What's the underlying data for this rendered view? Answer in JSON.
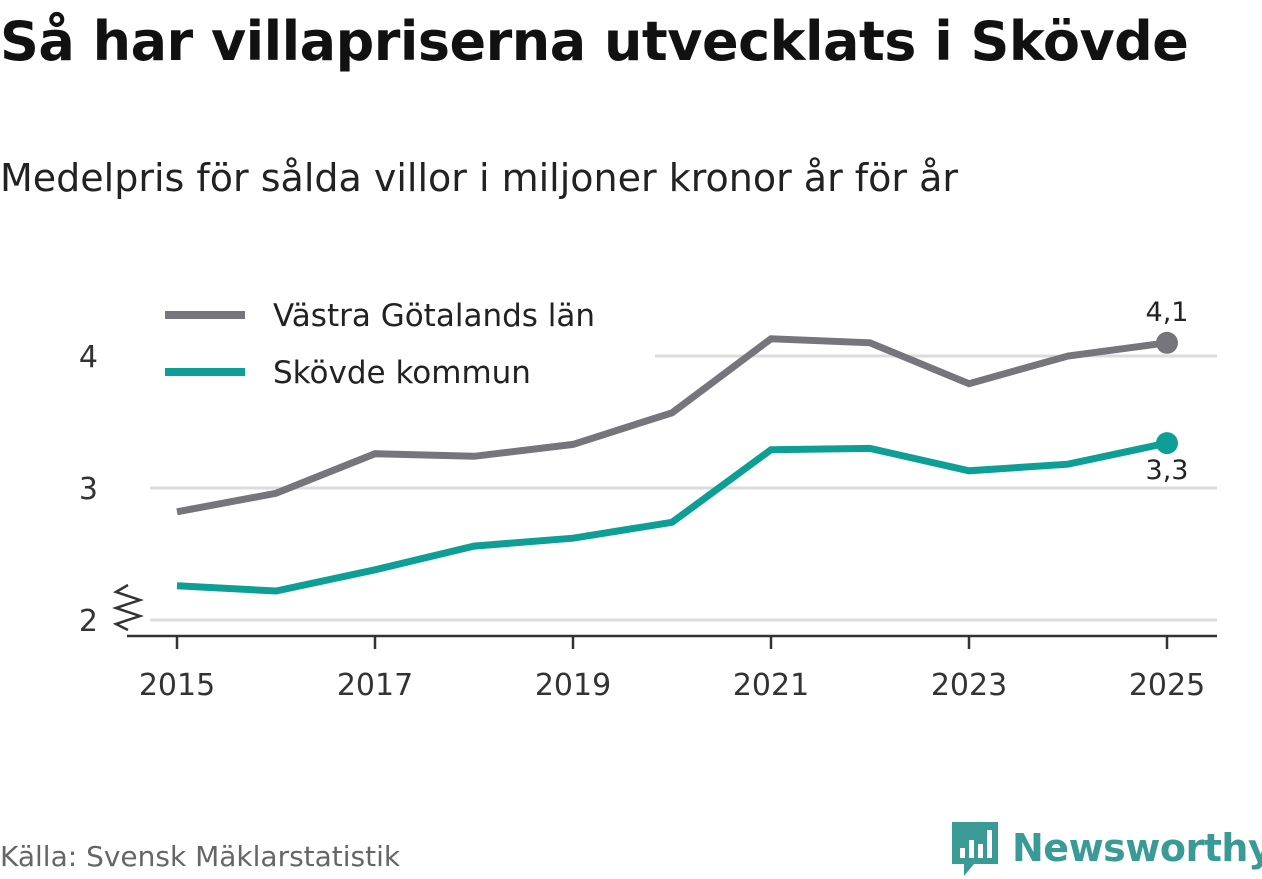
{
  "chart_data": {
    "type": "line",
    "title": "Så har villapriserna utvecklats i Skövde",
    "subtitle": "Medelpris för sålda villor i miljoner kronor år för år",
    "x": [
      2015,
      2016,
      2017,
      2018,
      2019,
      2020,
      2021,
      2022,
      2023,
      2024,
      2025
    ],
    "x_ticks": [
      "2015",
      "2017",
      "2019",
      "2021",
      "2023",
      "2025"
    ],
    "y_ticks": [
      "2",
      "3",
      "4"
    ],
    "ylim": [
      1.9,
      4.3
    ],
    "axis_break": true,
    "grid": true,
    "legend_position": "top-left",
    "series": [
      {
        "name": "Västra Götalands län",
        "color": "#76757c",
        "values": [
          2.82,
          2.96,
          3.26,
          3.24,
          3.33,
          3.57,
          4.13,
          4.1,
          3.79,
          4.0,
          4.1
        ],
        "end_label": "4,1"
      },
      {
        "name": "Skövde kommun",
        "color": "#0d9f95",
        "values": [
          2.26,
          2.22,
          2.38,
          2.56,
          2.62,
          2.74,
          3.29,
          3.3,
          3.13,
          3.18,
          3.34
        ],
        "end_label": "3,3"
      }
    ]
  },
  "source": "Källa: Svensk Mäklarstatistik",
  "brand": {
    "name": "Newsworthy",
    "color": "#3a9a96",
    "icon": "bar-chart-speech-bubble-icon"
  }
}
